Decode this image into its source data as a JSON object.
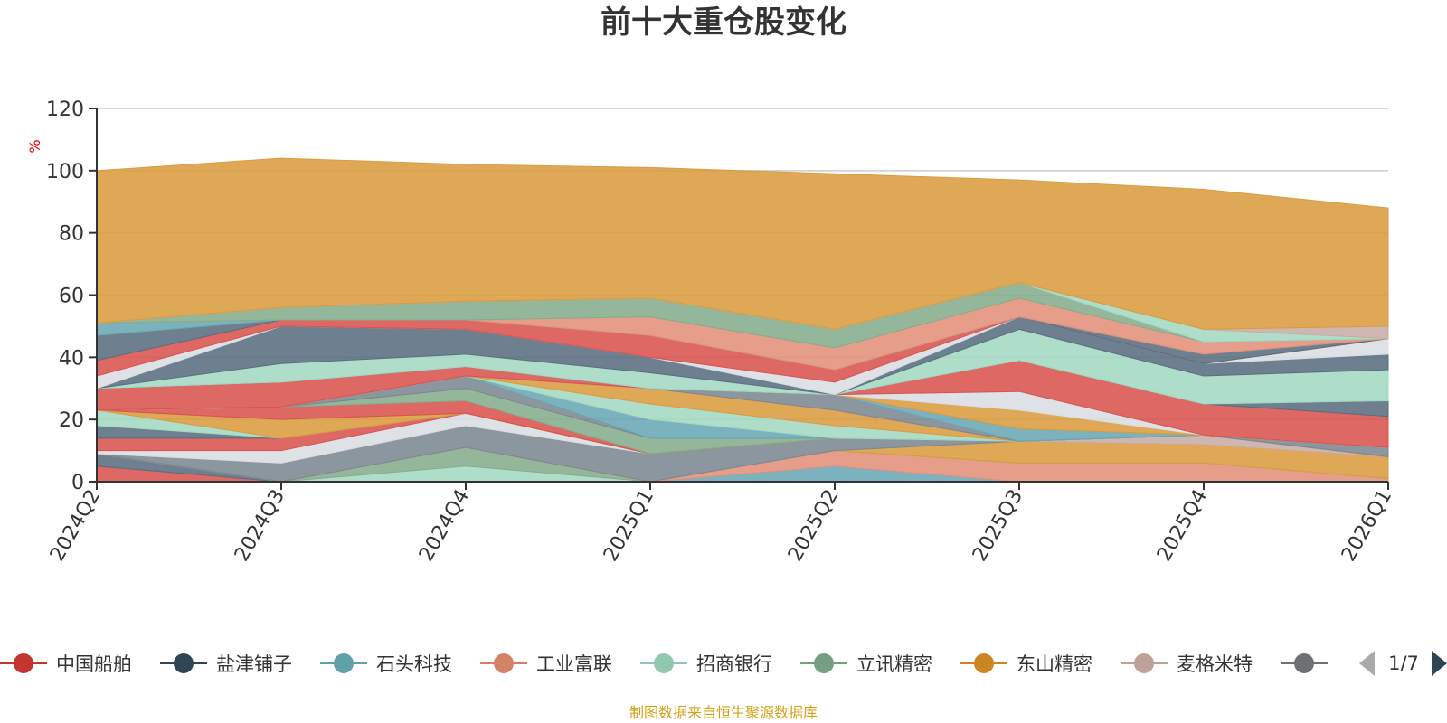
{
  "chart_data": {
    "type": "area",
    "stacked": true,
    "title": "前十大重仓股变化",
    "ylabel": "%",
    "ylim": [
      0,
      120
    ],
    "yticks": [
      0,
      20,
      40,
      60,
      80,
      100,
      120
    ],
    "grid": true,
    "legend_position": "bottom",
    "categories": [
      "2024Q2",
      "2024Q3",
      "2024Q4",
      "2025Q1",
      "2025Q2",
      "2025Q3",
      "2025Q4",
      "2026Q1"
    ],
    "series": [
      {
        "name": "中国船舶",
        "color": "#d9534f",
        "values": [
          5,
          0,
          0,
          0,
          0,
          0,
          0,
          0
        ]
      },
      {
        "name": "盐津铺子",
        "color": "#5a6e80",
        "values": [
          4,
          0,
          0,
          0,
          0,
          0,
          0,
          0
        ]
      },
      {
        "name": "石头科技",
        "color": "#6aa7b5",
        "values": [
          0,
          0,
          0,
          0,
          5,
          0,
          0,
          0
        ]
      },
      {
        "name": "工业富联",
        "color": "#e2917a",
        "values": [
          0,
          0,
          0,
          0,
          5,
          6,
          6,
          1
        ]
      },
      {
        "name": "招商银行",
        "color": "#a3d8c1",
        "values": [
          0,
          0,
          5,
          0,
          0,
          0,
          0,
          0
        ]
      },
      {
        "name": "立讯精密",
        "color": "#85ac8c",
        "values": [
          0,
          0,
          6,
          0,
          0,
          0,
          0,
          0
        ]
      },
      {
        "name": "东山精密",
        "color": "#d99c40",
        "values": [
          0,
          0,
          0,
          0,
          0,
          7,
          6,
          7
        ]
      },
      {
        "name": "麦格米特",
        "color": "#c9aca6",
        "values": [
          0,
          0,
          0,
          0,
          0,
          0,
          3,
          0
        ]
      },
      {
        "name": "",
        "color": "#7c8791",
        "values": [
          0,
          6,
          7,
          9,
          4,
          0,
          0,
          0
        ]
      },
      {
        "name": "",
        "color": "#dadde2",
        "values": [
          1,
          4,
          4,
          0,
          0,
          0,
          0,
          0
        ]
      },
      {
        "name": "",
        "color": "#d9534f",
        "values": [
          4,
          4,
          0,
          0,
          0,
          0,
          0,
          0
        ]
      },
      {
        "name": "",
        "color": "#5a6e80",
        "values": [
          4,
          0,
          0,
          0,
          0,
          0,
          0,
          0
        ]
      },
      {
        "name": "",
        "color": "#a3d8c1",
        "values": [
          5,
          0,
          0,
          0,
          0,
          0,
          0,
          0
        ]
      },
      {
        "name": "",
        "color": "#d99c40",
        "values": [
          0,
          6,
          0,
          0,
          0,
          0,
          0,
          0
        ]
      },
      {
        "name": "",
        "color": "#d9534f",
        "values": [
          0,
          4,
          4,
          0,
          0,
          0,
          0,
          0
        ]
      },
      {
        "name": "",
        "color": "#85ac8c",
        "values": [
          0,
          0,
          4,
          5,
          0,
          0,
          0,
          0
        ]
      },
      {
        "name": "",
        "color": "#7c8791",
        "values": [
          0,
          0,
          4,
          0,
          0,
          0,
          0,
          0
        ]
      },
      {
        "name": "",
        "color": "#6aa7b5",
        "values": [
          0,
          0,
          0,
          6,
          0,
          0,
          0,
          0
        ]
      },
      {
        "name": "",
        "color": "#a3d8c1",
        "values": [
          0,
          0,
          0,
          5,
          4,
          0,
          0,
          0
        ]
      },
      {
        "name": "",
        "color": "#d99c40",
        "values": [
          0,
          0,
          0,
          5,
          5,
          0,
          0,
          0
        ]
      },
      {
        "name": "",
        "color": "#7c8791",
        "values": [
          0,
          0,
          0,
          0,
          5,
          0,
          0,
          3
        ]
      },
      {
        "name": "",
        "color": "#6aa7b5",
        "values": [
          0,
          0,
          0,
          0,
          0,
          4,
          0,
          0
        ]
      },
      {
        "name": "",
        "color": "#d99c40",
        "values": [
          0,
          0,
          0,
          0,
          0,
          6,
          0,
          0
        ]
      },
      {
        "name": "",
        "color": "#dadde2",
        "values": [
          0,
          0,
          0,
          0,
          0,
          6,
          0,
          0
        ]
      },
      {
        "name": "",
        "color": "#d9534f",
        "values": [
          7,
          8,
          3,
          0,
          0,
          10,
          10,
          10
        ]
      },
      {
        "name": "",
        "color": "#5a6e80",
        "values": [
          0,
          0,
          0,
          0,
          0,
          0,
          0,
          5
        ]
      },
      {
        "name": "",
        "color": "#a3d8c1",
        "values": [
          0,
          6,
          4,
          5,
          0,
          10,
          9,
          10
        ]
      },
      {
        "name": "",
        "color": "#5a6e80",
        "values": [
          0,
          12,
          8,
          5,
          0,
          4,
          4,
          5
        ]
      },
      {
        "name": "",
        "color": "#dadde2",
        "values": [
          4,
          0,
          0,
          0,
          4,
          0,
          0,
          5
        ]
      },
      {
        "name": "",
        "color": "#d9534f",
        "values": [
          5,
          2,
          3,
          7,
          4,
          0,
          0,
          0
        ]
      },
      {
        "name": "",
        "color": "#5a6e80",
        "values": [
          8,
          0,
          0,
          0,
          0,
          0,
          3,
          0
        ]
      },
      {
        "name": "",
        "color": "#6aa7b5",
        "values": [
          4,
          0,
          0,
          0,
          0,
          0,
          0,
          0
        ]
      },
      {
        "name": "",
        "color": "#e2917a",
        "values": [
          0,
          0,
          0,
          6,
          7,
          6,
          4,
          0
        ]
      },
      {
        "name": "",
        "color": "#85ac8c",
        "values": [
          0,
          4,
          6,
          6,
          6,
          5,
          0,
          0
        ]
      },
      {
        "name": "",
        "color": "#a3d8c1",
        "values": [
          0,
          0,
          0,
          0,
          0,
          0,
          4,
          0
        ]
      },
      {
        "name": "",
        "color": "#c9aca6",
        "values": [
          0,
          0,
          0,
          0,
          0,
          0,
          0,
          4
        ]
      },
      {
        "name": "",
        "color": "#d99c40",
        "values": [
          49,
          48,
          44,
          42,
          50,
          33,
          45,
          38
        ]
      }
    ]
  },
  "legend": {
    "items": [
      {
        "name": "中国船舶",
        "color": "#c23531"
      },
      {
        "name": "盐津铺子",
        "color": "#2f4554"
      },
      {
        "name": "石头科技",
        "color": "#61a0a8"
      },
      {
        "name": "工业富联",
        "color": "#d48265"
      },
      {
        "name": "招商银行",
        "color": "#91c7ae"
      },
      {
        "name": "立讯精密",
        "color": "#749f83"
      },
      {
        "name": "东山精密",
        "color": "#ca8622"
      },
      {
        "name": "麦格米特",
        "color": "#bda29a"
      },
      {
        "name": "",
        "color": "#6e7074"
      }
    ],
    "page": "1/7"
  },
  "footer": {
    "source": "制图数据来自恒生聚源数据库"
  }
}
